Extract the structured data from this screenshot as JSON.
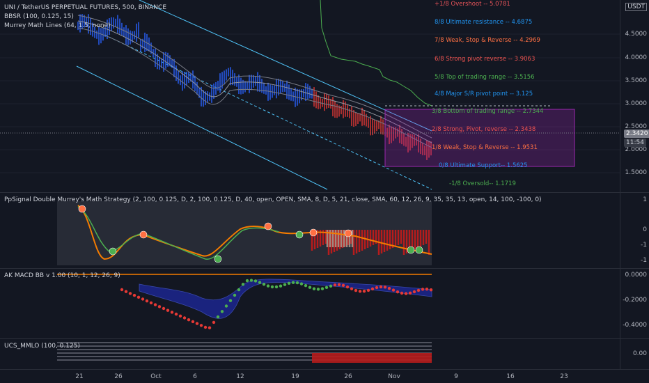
{
  "chart": {
    "title": "UNI / TetherUS PERPETUAL FUTURES, 500, BINANCE",
    "indicators": [
      "BBSR (100, 0.125, 15)",
      "Murrey Math Lines (64, 1.5, none)"
    ],
    "currency": "USDT",
    "price_ticks": [
      "4.5000",
      "4.0000",
      "3.5000",
      "3.0000",
      "2.5000",
      "2.0000",
      "1.5000"
    ],
    "current_price": "2.3420",
    "countdown": "11:54"
  },
  "murrey_levels": [
    {
      "label": "+1/8 Overshoot --  5.0781",
      "color": "#e8545a"
    },
    {
      "label": "8/8 Ultimate resistance --  4.6875",
      "color": "#2196f3"
    },
    {
      "label": "7/8 Weak, Stop & Reverse --  4.2969",
      "color": "#ff7043"
    },
    {
      "label": "6/8 Strong pivot reverse --  3.9063",
      "color": "#ef5350"
    },
    {
      "label": "5/8 Top of trading range --  3.5156",
      "color": "#4caf50"
    },
    {
      "label": "4/8 Major S/R pivot point --  3.125",
      "color": "#2196f3"
    },
    {
      "label": "3/8 Bottom of trading range --  2.7344",
      "color": "#4caf50"
    },
    {
      "label": "2/8 Strong, Pivot, reverse --  2.3438",
      "color": "#ef5350"
    },
    {
      "label": "1/8 Weak, Stop & Reverse --  1.9531",
      "color": "#ff7043"
    },
    {
      "label": "0/8 Ultimate Support--  1.5625",
      "color": "#2196f3"
    },
    {
      "label": "-1/8 Oversold--  1.1719",
      "color": "#4caf50"
    }
  ],
  "pane2": {
    "title": "PpSignal Double Murrey&#039;s Math Strategy  (2, 100, 0.125, D, 2, 100, 0.125, D, 40, open, OPEN, SMA, 8, D, 5, 21, close, SMA, 60, 12, 26, 9, 35, 35, 13, open, 14, 100, -100, 0)",
    "ticks": [
      "1",
      "0",
      "-1",
      "-1"
    ]
  },
  "pane3": {
    "title": "AK MACD BB v 1.00 (10, 1, 12, 26, 9)",
    "ticks": [
      "0.0000",
      "-0.2000",
      "-0.4000"
    ]
  },
  "pane4": {
    "title": "UCS_MMLO (100, 0.125)",
    "ticks": [
      "0.00"
    ]
  },
  "x_ticks": [
    "21",
    "26",
    "Oct",
    "6",
    "12",
    "19",
    "26",
    "Nov",
    "9",
    "16",
    "23"
  ],
  "colors": {
    "bg": "#131722",
    "up": "#2962ff",
    "down": "#e53935",
    "channel": "#4fc3f7",
    "orange": "#f57c00",
    "green": "#4caf50",
    "purple": "#9c27b0"
  }
}
